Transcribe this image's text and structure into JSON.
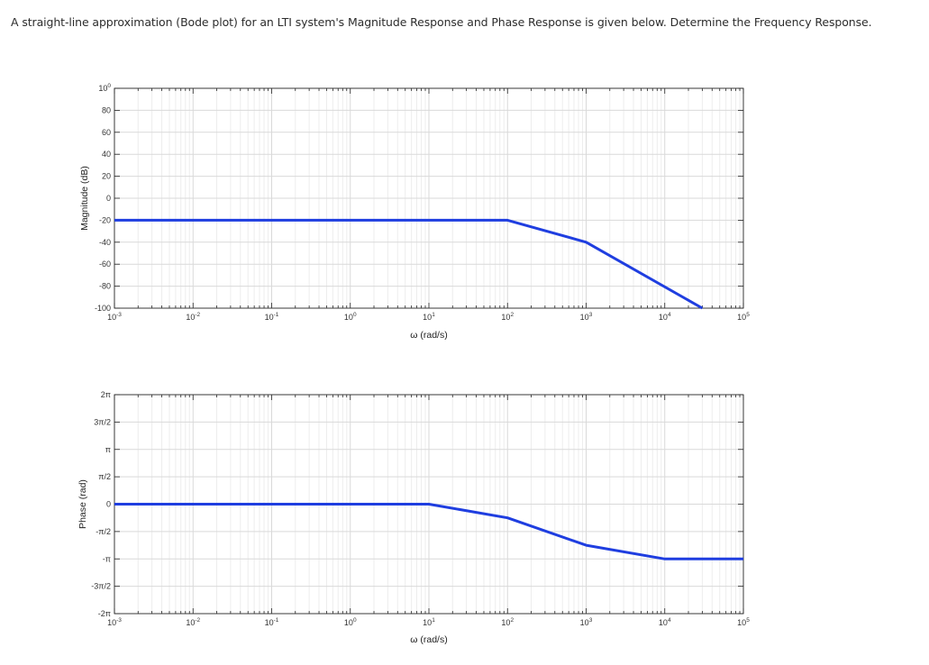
{
  "question": "A straight-line approximation (Bode plot) for an LTI system's Magnitude Response and Phase Response is given below. Determine the Frequency Response.",
  "colors": {
    "series": "#1f3ee0",
    "grid_major": "#d9d9d9",
    "grid_minor": "#ededed",
    "axis": "#262626"
  },
  "chart_data": [
    {
      "type": "line",
      "title": "",
      "xlabel": "ω (rad/s)",
      "ylabel": "Magnitude (dB)",
      "xscale": "log",
      "xlim": [
        0.001,
        100000
      ],
      "ylim": [
        -100,
        100
      ],
      "grid": true,
      "x_tick_labels": [
        "10-3",
        "10-2",
        "10-1",
        "100",
        "101",
        "102",
        "103",
        "104",
        "105"
      ],
      "y_tick_labels": [
        "100",
        "80",
        "60",
        "40",
        "20",
        "0",
        "-20",
        "-40",
        "-60",
        "-80",
        "-100"
      ],
      "series": [
        {
          "x": [
            0.001,
            100,
            1000,
            30000
          ],
          "y": [
            -20,
            -20,
            -40,
            -100
          ]
        }
      ]
    },
    {
      "type": "line",
      "title": "",
      "xlabel": "ω (rad/s)",
      "ylabel": "Phase (rad)",
      "xscale": "log",
      "xlim": [
        0.001,
        100000
      ],
      "ylim": [
        -6.2832,
        6.2832
      ],
      "grid": true,
      "x_tick_labels": [
        "10-3",
        "10-2",
        "10-1",
        "100",
        "101",
        "102",
        "103",
        "104",
        "105"
      ],
      "y_tick_labels": [
        "2π",
        "3π/2",
        "π",
        "π/2",
        "0",
        "-π/2",
        "-π",
        "-3π/2",
        "-2π"
      ],
      "series": [
        {
          "x": [
            0.001,
            10,
            100,
            1000,
            10000,
            100000
          ],
          "y": [
            0,
            0,
            -0.7854,
            -2.3562,
            -3.1416,
            -3.1416
          ]
        }
      ]
    }
  ]
}
